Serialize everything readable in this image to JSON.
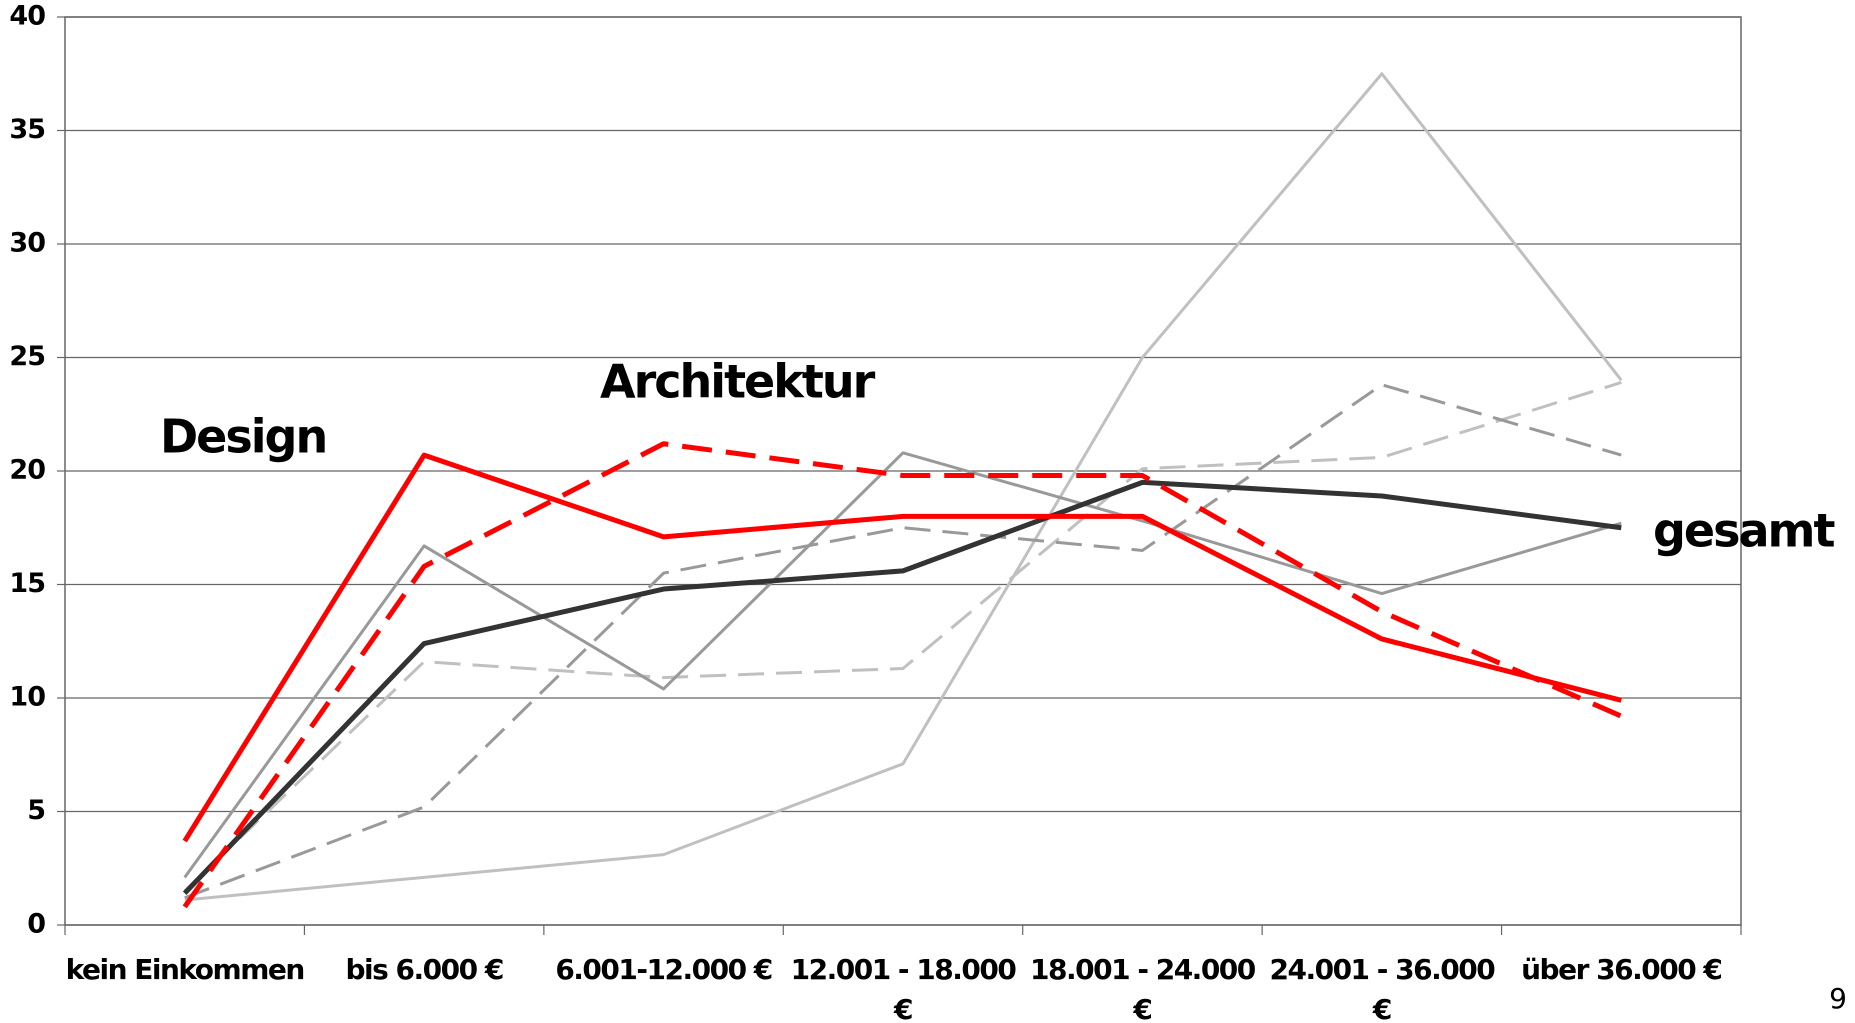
{
  "chart_data": {
    "type": "line",
    "categories": [
      "kein Einkommen",
      "bis 6.000 €",
      "6.001-12.000 €",
      "12.001 - 18.000 €",
      "18.001 - 24.000 €",
      "24.001 - 36.000 €",
      "über 36.000 €"
    ],
    "series": [
      {
        "color": "#c0c0c0",
        "dash": "solid",
        "width": 3,
        "values": [
          1.1,
          2.1,
          3.1,
          7.1,
          25.0,
          37.5,
          24.0
        ]
      },
      {
        "color": "#c0c0c0",
        "dash": "dashed",
        "width": 3,
        "values": [
          1.5,
          11.6,
          10.9,
          11.3,
          20.1,
          20.6,
          23.9
        ]
      },
      {
        "color": "#999999",
        "dash": "dashed",
        "width": 3,
        "values": [
          1.2,
          5.2,
          15.5,
          17.5,
          16.5,
          23.8,
          20.7
        ]
      },
      {
        "color": "#999999",
        "dash": "solid",
        "width": 3,
        "values": [
          2.1,
          16.7,
          10.4,
          20.8,
          17.8,
          14.6,
          17.7
        ]
      },
      {
        "name": "gesamt",
        "color": "#333333",
        "dash": "solid",
        "width": 5,
        "values": [
          1.4,
          12.4,
          14.8,
          15.6,
          19.5,
          18.9,
          17.5
        ]
      },
      {
        "name": "Architektur",
        "color": "#ff0000",
        "dash": "dashed",
        "width": 5,
        "values": [
          0.8,
          15.8,
          21.2,
          19.8,
          19.8,
          13.8,
          9.2
        ]
      },
      {
        "name": "Design",
        "color": "#ff0000",
        "dash": "solid",
        "width": 5,
        "values": [
          3.7,
          20.7,
          17.1,
          18.0,
          18.0,
          12.6,
          9.9
        ]
      }
    ],
    "ylim": [
      0,
      40
    ],
    "yticks": [
      0,
      5,
      10,
      15,
      20,
      25,
      30,
      35,
      40
    ],
    "grid": true
  },
  "page_number": "9"
}
